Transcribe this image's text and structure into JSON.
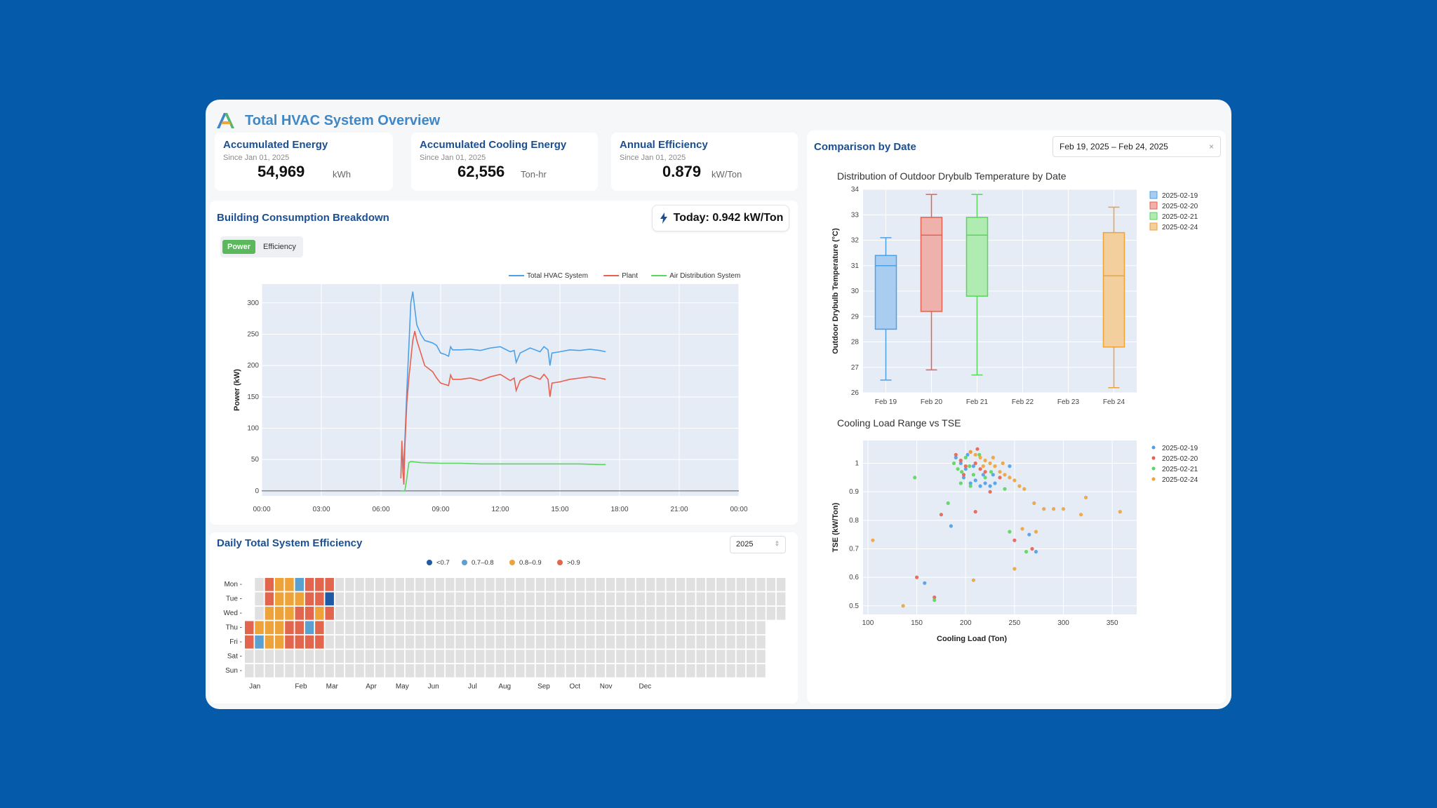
{
  "header": {
    "title": "Total HVAC System Overview"
  },
  "kpis": [
    {
      "title": "Accumulated Energy",
      "since": "Since Jan 01, 2025",
      "value": "54,969",
      "unit": "kWh"
    },
    {
      "title": "Accumulated Cooling Energy",
      "since": "Since Jan 01, 2025",
      "value": "62,556",
      "unit": "Ton-hr"
    },
    {
      "title": "Annual Efficiency",
      "since": "Since Jan 01, 2025",
      "value": "0.879",
      "unit": "kW/Ton"
    }
  ],
  "consumption": {
    "title": "Building Consumption Breakdown",
    "today": "Today: 0.942 kW/Ton",
    "toggle": {
      "power": "Power",
      "efficiency": "Efficiency",
      "active": "power"
    }
  },
  "daily_eff": {
    "title": "Daily Total System Efficiency",
    "year": "2025"
  },
  "comparison": {
    "title": "Comparison by Date",
    "date_range": "Feb 19, 2025 – Feb 24, 2025",
    "clear": "×"
  },
  "colors": {
    "accent": "#1b4f91",
    "brand_bg": "#055aaa",
    "plot_bg": "#e5ecf6"
  },
  "chart_data": [
    {
      "type": "line",
      "id": "power",
      "ylabel": "Power (kW)",
      "xlabel": "",
      "x_ticks": [
        "00:00",
        "03:00",
        "06:00",
        "09:00",
        "12:00",
        "15:00",
        "18:00",
        "21:00",
        "00:00"
      ],
      "y_ticks": [
        0,
        50,
        100,
        150,
        200,
        250,
        300
      ],
      "ylim": [
        -8,
        330
      ],
      "xlim": [
        0,
        24
      ],
      "grid": true,
      "legend_position": "top-right",
      "series": [
        {
          "name": "Total HVAC System",
          "color": "#4ca0e8",
          "x": [
            7.1,
            7.2,
            7.3,
            7.4,
            7.5,
            7.6,
            7.7,
            7.8,
            8.0,
            8.2,
            8.4,
            8.6,
            8.8,
            9.0,
            9.2,
            9.4,
            9.5,
            9.6,
            10.0,
            10.5,
            11.0,
            11.5,
            12.0,
            12.5,
            12.7,
            12.8,
            13.0,
            13.5,
            14.0,
            14.2,
            14.4,
            14.5,
            14.6,
            15.0,
            15.5,
            16.0,
            16.5,
            17.0,
            17.3
          ],
          "y": [
            30,
            80,
            160,
            230,
            300,
            318,
            290,
            265,
            250,
            240,
            238,
            236,
            232,
            220,
            218,
            215,
            230,
            225,
            225,
            226,
            224,
            228,
            230,
            222,
            224,
            205,
            220,
            228,
            222,
            230,
            225,
            200,
            220,
            222,
            225,
            224,
            226,
            224,
            222
          ]
        },
        {
          "name": "Plant",
          "color": "#e8604f",
          "x": [
            7.0,
            7.05,
            7.1,
            7.15,
            7.2,
            7.3,
            7.4,
            7.5,
            7.6,
            7.7,
            7.8,
            8.0,
            8.2,
            8.4,
            8.6,
            8.8,
            9.0,
            9.2,
            9.4,
            9.5,
            9.6,
            10.0,
            10.5,
            11.0,
            11.5,
            12.0,
            12.5,
            12.7,
            12.8,
            13.0,
            13.5,
            14.0,
            14.2,
            14.4,
            14.5,
            14.6,
            15.0,
            15.5,
            16.0,
            16.5,
            17.0,
            17.3
          ],
          "y": [
            20,
            80,
            30,
            10,
            70,
            140,
            180,
            210,
            240,
            255,
            240,
            220,
            200,
            195,
            190,
            180,
            172,
            170,
            168,
            185,
            178,
            178,
            180,
            176,
            182,
            186,
            176,
            180,
            160,
            176,
            184,
            178,
            186,
            178,
            150,
            172,
            174,
            178,
            180,
            182,
            180,
            178
          ]
        },
        {
          "name": "Air Distribution System",
          "color": "#59d65b",
          "x": [
            7.0,
            7.2,
            7.3,
            7.4,
            7.5,
            8.0,
            9.0,
            10.0,
            11.0,
            12.0,
            13.0,
            14.0,
            15.0,
            16.0,
            17.0,
            17.3
          ],
          "y": [
            0,
            0,
            20,
            45,
            47,
            45,
            44,
            44,
            43,
            43,
            43,
            43,
            43,
            43,
            42,
            42
          ]
        }
      ]
    },
    {
      "type": "heatmap",
      "id": "daily_efficiency",
      "rows": [
        "Mon",
        "Tue",
        "Wed",
        "Thu",
        "Fri",
        "Sat",
        "Sun"
      ],
      "x_ticks": [
        "Jan",
        "Feb",
        "Mar",
        "Apr",
        "May",
        "Jun",
        "Jul",
        "Aug",
        "Sep",
        "Oct",
        "Nov",
        "Dec"
      ],
      "weeks": 53,
      "legend": [
        {
          "label": "<0.7",
          "color": "#1f5aa6"
        },
        {
          "label": "0.7–0.8",
          "color": "#5aa0d0"
        },
        {
          "label": "0.8–0.9",
          "color": "#eea23a"
        },
        {
          "label": ">0.9",
          "color": "#e2664d"
        }
      ],
      "empty_color": "#e0e0e0",
      "cells": [
        [
          "e",
          "r",
          "o",
          "o",
          "b",
          "r",
          "r",
          "r"
        ],
        [
          "e",
          "r",
          "o",
          "o",
          "o",
          "r",
          "r",
          "d"
        ],
        [
          "e",
          "o",
          "o",
          "o",
          "r",
          "r",
          "o",
          "r"
        ],
        [
          "r",
          "o",
          "o",
          "o",
          "r",
          "r",
          "b",
          "r"
        ],
        [
          "r",
          "b",
          "o",
          "o",
          "r",
          "r",
          "r",
          "r"
        ],
        [],
        []
      ],
      "start_offset": [
        1,
        1,
        1,
        0,
        0,
        0,
        0
      ],
      "total_cols": [
        53,
        53,
        53,
        52,
        52,
        52,
        52
      ]
    },
    {
      "type": "box",
      "id": "outdoor_temp",
      "title": "Distribution of Outdoor Drybulb Temperature by Date",
      "ylabel": "Outdoor Drybulb Temperature (°C)",
      "categories": [
        "Feb 19",
        "Feb 20",
        "Feb 21",
        "Feb 22",
        "Feb 23",
        "Feb 24"
      ],
      "ylim": [
        26,
        34
      ],
      "y_ticks": [
        26,
        27,
        28,
        29,
        30,
        31,
        32,
        33,
        34
      ],
      "legend_position": "top-right",
      "series": [
        {
          "name": "2025-02-19",
          "cat": 0,
          "color": "#4ca0e8",
          "fill": "#a9cdf0",
          "min": 26.5,
          "q1": 28.5,
          "median": 31.0,
          "q3": 31.4,
          "max": 32.1
        },
        {
          "name": "2025-02-20",
          "cat": 1,
          "color": "#e8604f",
          "fill": "#efb1ac",
          "min": 26.9,
          "q1": 29.2,
          "median": 32.2,
          "q3": 32.9,
          "max": 33.8
        },
        {
          "name": "2025-02-21",
          "cat": 2,
          "color": "#59d65b",
          "fill": "#b0ebb1",
          "min": 26.7,
          "q1": 29.8,
          "median": 32.2,
          "q3": 32.9,
          "max": 33.8
        },
        {
          "name": "2025-02-24",
          "cat": 5,
          "color": "#eea23a",
          "fill": "#f3cf9d",
          "min": 26.2,
          "q1": 27.8,
          "median": 30.6,
          "q3": 32.3,
          "max": 33.3
        }
      ]
    },
    {
      "type": "scatter",
      "id": "cooling_vs_tse",
      "title": "Cooling Load Range vs TSE",
      "xlabel": "Cooling Load (Ton)",
      "ylabel": "TSE (kW/Ton)",
      "xlim": [
        95,
        375
      ],
      "ylim": [
        0.47,
        1.08
      ],
      "x_ticks": [
        100,
        150,
        200,
        250,
        300,
        350
      ],
      "y_ticks": [
        0.5,
        0.6,
        0.7,
        0.8,
        0.9,
        1
      ],
      "legend_position": "top-right",
      "series": [
        {
          "name": "2025-02-19",
          "color": "#4ca0e8",
          "points": [
            [
              190,
              1.02
            ],
            [
              195,
              1.0
            ],
            [
              200,
              0.98
            ],
            [
              198,
              0.95
            ],
            [
              205,
              0.93
            ],
            [
              210,
              0.94
            ],
            [
              215,
              0.92
            ],
            [
              220,
              0.93
            ],
            [
              225,
              0.92
            ],
            [
              230,
              0.93
            ],
            [
              202,
              1.03
            ],
            [
              208,
              0.99
            ],
            [
              218,
              0.96
            ],
            [
              185,
              0.78
            ],
            [
              158,
              0.58
            ],
            [
              265,
              0.75
            ],
            [
              272,
              0.69
            ],
            [
              245,
              0.99
            ],
            [
              228,
              0.96
            ]
          ]
        },
        {
          "name": "2025-02-20",
          "color": "#e8604f",
          "points": [
            [
              190,
              1.03
            ],
            [
              195,
              1.01
            ],
            [
              200,
              0.99
            ],
            [
              205,
              1.04
            ],
            [
              210,
              1.0
            ],
            [
              215,
              0.98
            ],
            [
              220,
              0.97
            ],
            [
              212,
              1.05
            ],
            [
              198,
              0.96
            ],
            [
              175,
              0.82
            ],
            [
              210,
              0.83
            ],
            [
              150,
              0.6
            ],
            [
              168,
              0.53
            ],
            [
              268,
              0.7
            ],
            [
              250,
              0.73
            ],
            [
              225,
              0.9
            ],
            [
              235,
              0.95
            ]
          ]
        },
        {
          "name": "2025-02-21",
          "color": "#59d65b",
          "points": [
            [
              188,
              1.0
            ],
            [
              192,
              0.98
            ],
            [
              196,
              0.97
            ],
            [
              200,
              1.02
            ],
            [
              204,
              0.99
            ],
            [
              208,
              0.96
            ],
            [
              214,
              1.03
            ],
            [
              220,
              0.95
            ],
            [
              226,
              0.97
            ],
            [
              195,
              0.93
            ],
            [
              182,
              0.86
            ],
            [
              148,
              0.95
            ],
            [
              168,
              0.52
            ],
            [
              262,
              0.69
            ],
            [
              245,
              0.76
            ],
            [
              205,
              0.92
            ],
            [
              240,
              0.91
            ]
          ]
        },
        {
          "name": "2025-02-24",
          "color": "#eea23a",
          "points": [
            [
              205,
              1.04
            ],
            [
              210,
              1.03
            ],
            [
              215,
              1.02
            ],
            [
              220,
              1.01
            ],
            [
              225,
              1.0
            ],
            [
              230,
              0.99
            ],
            [
              235,
              0.97
            ],
            [
              240,
              0.96
            ],
            [
              245,
              0.95
            ],
            [
              250,
              0.94
            ],
            [
              255,
              0.92
            ],
            [
              260,
              0.91
            ],
            [
              270,
              0.86
            ],
            [
              280,
              0.84
            ],
            [
              290,
              0.84
            ],
            [
              300,
              0.84
            ],
            [
              318,
              0.82
            ],
            [
              323,
              0.88
            ],
            [
              358,
              0.83
            ],
            [
              105,
              0.73
            ],
            [
              136,
              0.5
            ],
            [
              208,
              0.59
            ],
            [
              250,
              0.63
            ],
            [
              258,
              0.77
            ],
            [
              272,
              0.76
            ],
            [
              218,
              0.99
            ],
            [
              228,
              1.02
            ],
            [
              238,
              1.0
            ]
          ]
        }
      ]
    }
  ]
}
